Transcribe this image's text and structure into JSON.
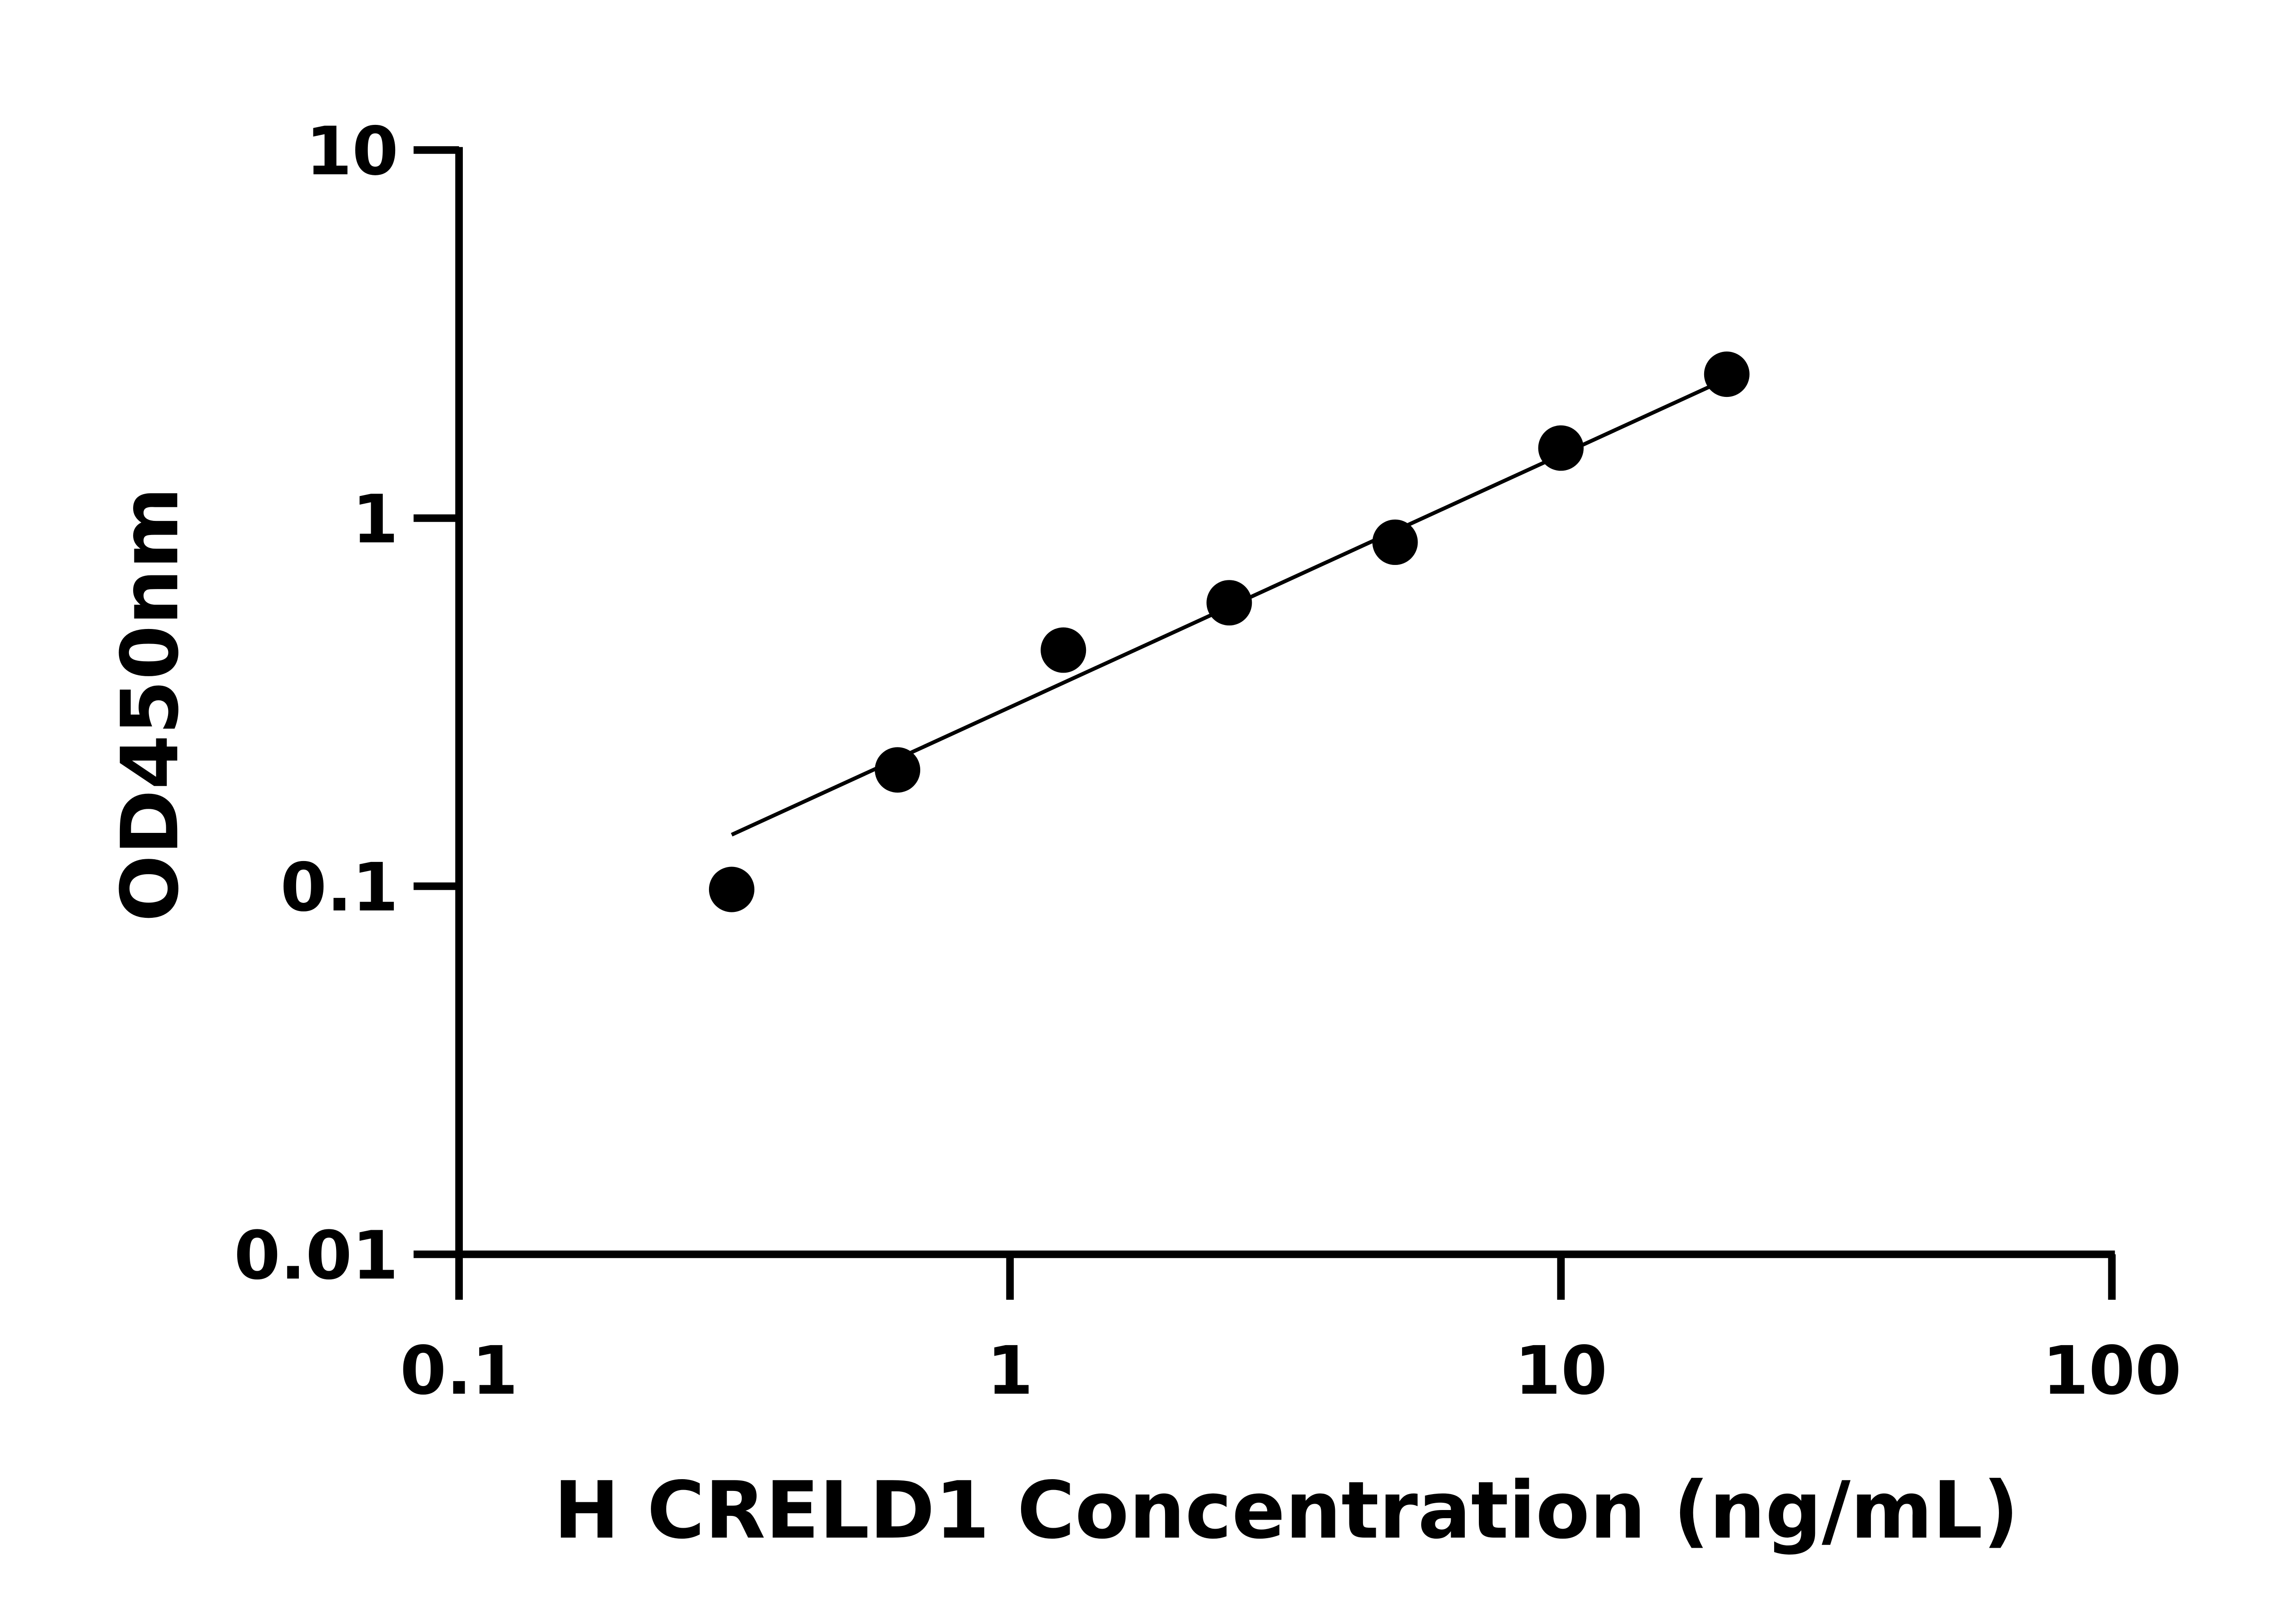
{
  "chart_data": {
    "type": "scatter",
    "title": "",
    "xlabel": "H CRELD1 Concentration (ng/mL)",
    "ylabel": "OD450nm",
    "x_scale": "log",
    "y_scale": "log",
    "xlim": [
      0.1,
      100
    ],
    "ylim": [
      0.01,
      10
    ],
    "x_ticks": [
      "0.1",
      "1",
      "10",
      "100"
    ],
    "y_ticks": [
      "0.01",
      "0.1",
      "1",
      "10"
    ],
    "grid": false,
    "marker_color": "#000000",
    "series": [
      {
        "x": [
          0.3125,
          0.625,
          1.25,
          2.5,
          5,
          10,
          20
        ],
        "y": [
          0.098,
          0.207,
          0.438,
          0.589,
          0.86,
          1.55,
          2.46
        ]
      }
    ],
    "fit_line": {
      "x": [
        0.3125,
        20
      ],
      "y": [
        0.138,
        2.39
      ]
    }
  }
}
